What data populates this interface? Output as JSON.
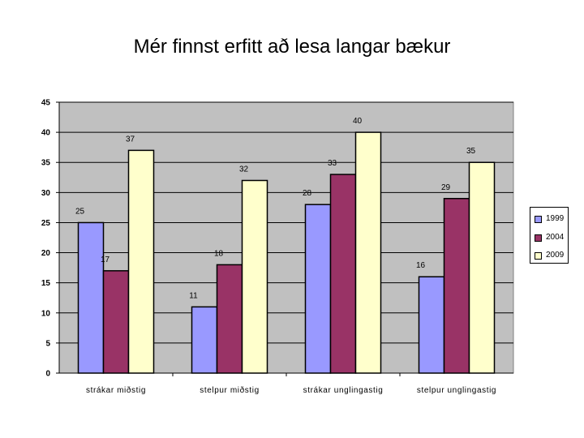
{
  "title": "Mér finnst erfitt að lesa langar bækur",
  "chart_data": {
    "type": "bar",
    "title": "Mér finnst erfitt að lesa langar bækur",
    "categories": [
      "strákar miðstig",
      "stelpur miðstig",
      "strákar unglingastig",
      "stelpur unglingastig"
    ],
    "series": [
      {
        "name": "1999",
        "color": "#9999ff",
        "values": [
          25,
          11,
          28,
          16
        ]
      },
      {
        "name": "2004",
        "color": "#993366",
        "values": [
          17,
          18,
          33,
          29
        ]
      },
      {
        "name": "2009",
        "color": "#ffffcc",
        "values": [
          37,
          32,
          40,
          35
        ]
      }
    ],
    "ylim": [
      0,
      45
    ],
    "yticks": [
      "0",
      "5",
      "10",
      "15",
      "20",
      "25",
      "30",
      "35",
      "40",
      "45"
    ],
    "grid": true,
    "plot_background": "#c0c0c0",
    "legend_position": "right"
  }
}
